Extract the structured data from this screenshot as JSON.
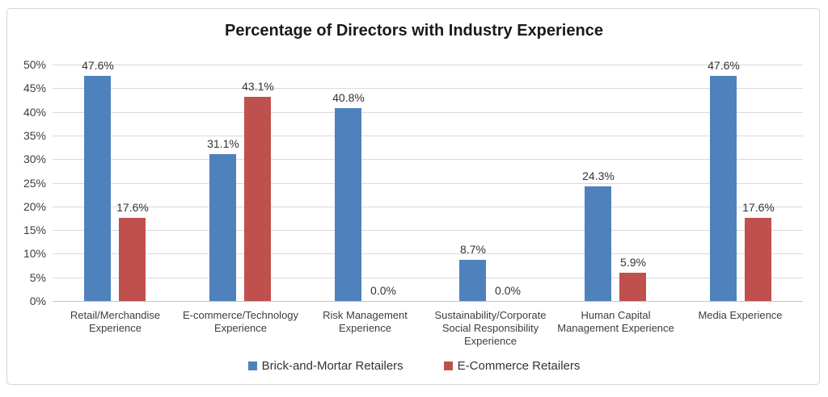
{
  "figure": {
    "background": "#FFFFFF",
    "border_color": "#D5D5D5"
  },
  "chart_data": {
    "type": "bar",
    "title": "Percentage of Directors with Industry Experience",
    "categories": [
      "Retail/Merchandise Experience",
      "E-commerce/Technology Experience",
      "Risk Management Experience",
      "Sustainability/Corporate Social Responsibility Experience",
      "Human Capital Management Experience",
      "Media Experience"
    ],
    "series": [
      {
        "name": "Brick-and-Mortar Retailers",
        "color": "#4F81BD",
        "values": [
          47.6,
          31.1,
          40.8,
          8.7,
          24.3,
          47.6
        ],
        "data_labels": [
          "47.6%",
          "31.1%",
          "40.8%",
          "8.7%",
          "24.3%",
          "47.6%"
        ]
      },
      {
        "name": "E-Commerce Retailers",
        "color": "#C0504D",
        "values": [
          17.6,
          43.1,
          0.0,
          0.0,
          5.9,
          17.6
        ],
        "data_labels": [
          "17.6%",
          "43.1%",
          "0.0%",
          "0.0%",
          "5.9%",
          "17.6%"
        ]
      }
    ],
    "y_axis": {
      "min": 0,
      "max": 50,
      "step": 5,
      "tick_labels": [
        "0%",
        "5%",
        "10%",
        "15%",
        "20%",
        "25%",
        "30%",
        "35%",
        "40%",
        "45%",
        "50%"
      ]
    },
    "xlabel": "",
    "ylabel": "",
    "grid": true,
    "data_labels_shown": true,
    "legend_position": "bottom"
  }
}
